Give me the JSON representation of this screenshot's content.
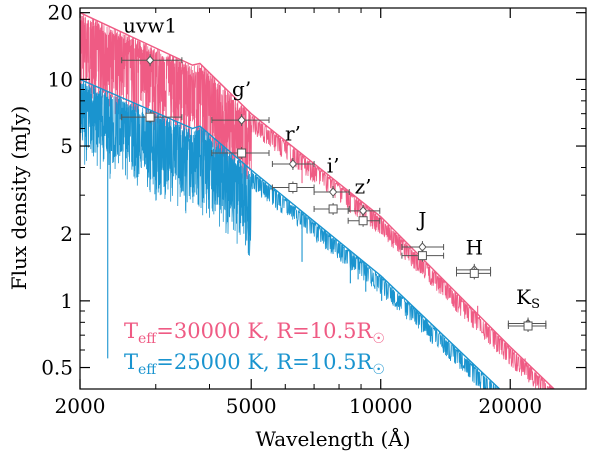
{
  "chart_data": {
    "type": "line",
    "xlabel": "Wavelength (Å)",
    "ylabel": "Flux density (mJy)",
    "x_scale": "log",
    "y_scale": "log",
    "xlim": [
      2000,
      30000
    ],
    "ylim": [
      0.4,
      21
    ],
    "xticks": [
      {
        "value": 2000,
        "label": "2000"
      },
      {
        "value": 5000,
        "label": "5000"
      },
      {
        "value": 10000,
        "label": "10000"
      },
      {
        "value": 20000,
        "label": "20000"
      }
    ],
    "yticks": [
      {
        "value": 0.5,
        "label": "0.5"
      },
      {
        "value": 1,
        "label": "1"
      },
      {
        "value": 2,
        "label": "2"
      },
      {
        "value": 5,
        "label": "5"
      },
      {
        "value": 10,
        "label": "10"
      },
      {
        "value": 20,
        "label": "20"
      }
    ],
    "colors": {
      "hot": "#ef5b84",
      "cool": "#1a94cf",
      "points": "#555555"
    },
    "models": [
      {
        "color": "#ef5b84",
        "legend_text": "T",
        "legend_sub": "eff",
        "legend_rest": "=30000 K, R=10.5R",
        "legend_sym": "☉",
        "envelope": [
          [
            2000,
            20
          ],
          [
            3650,
            11.6
          ],
          [
            3800,
            11.8
          ],
          [
            5000,
            7.0
          ],
          [
            10000,
            2.4
          ],
          [
            20000,
            0.62
          ],
          [
            26000,
            0.38
          ]
        ],
        "lines": [
          [
            2150,
            17.6
          ],
          [
            2250,
            16.0
          ],
          [
            2480,
            14.2
          ],
          [
            2660,
            12.6
          ],
          [
            2850,
            11.9
          ],
          [
            3050,
            11.6
          ],
          [
            3300,
            11.2
          ],
          [
            3835,
            10.0
          ],
          [
            3889,
            9.6
          ],
          [
            3970,
            9.0
          ],
          [
            4101,
            7.8
          ],
          [
            4340,
            7.2
          ],
          [
            4861,
            5.8
          ],
          [
            6563,
            3.4
          ],
          [
            8500,
            2.5
          ],
          [
            8860,
            2.6
          ],
          [
            9230,
            2.3
          ],
          [
            10050,
            2.0
          ],
          [
            12820,
            1.4
          ],
          [
            16800,
            0.95
          ],
          [
            21660,
            0.55
          ]
        ]
      },
      {
        "color": "#1a94cf",
        "legend_text": "T",
        "legend_sub": "eff",
        "legend_rest": "=25000 K, R=10.5R",
        "legend_sym": "☉",
        "envelope": [
          [
            2000,
            10
          ],
          [
            3650,
            6.0
          ],
          [
            3800,
            6.15
          ],
          [
            5000,
            3.9
          ],
          [
            10000,
            1.3
          ],
          [
            20000,
            0.36
          ],
          [
            25000,
            0.3
          ]
        ],
        "lines": [
          [
            2150,
            8.6
          ],
          [
            2250,
            7.7
          ],
          [
            2320,
            0.55
          ],
          [
            2480,
            6.6
          ],
          [
            2660,
            5.9
          ],
          [
            2850,
            5.7
          ],
          [
            3050,
            5.2
          ],
          [
            3300,
            5.0
          ],
          [
            3835,
            4.8
          ],
          [
            3889,
            4.5
          ],
          [
            3970,
            4.3
          ],
          [
            4101,
            3.7
          ],
          [
            4340,
            3.5
          ],
          [
            4861,
            2.9
          ],
          [
            6563,
            1.5
          ],
          [
            8500,
            1.2
          ],
          [
            8860,
            1.25
          ],
          [
            9230,
            1.1
          ],
          [
            10050,
            1.0
          ],
          [
            12820,
            0.7
          ],
          [
            16800,
            0.5
          ],
          [
            21660,
            0.32
          ]
        ]
      }
    ],
    "photometry": [
      {
        "band": "uvw1",
        "x": 2910,
        "xlo": 2500,
        "xhi": 3450,
        "diamond": 12.2,
        "square": 6.75,
        "label_x": 2910,
        "label_y": 16.3
      },
      {
        "band": "g’",
        "x": 4750,
        "xlo": 4050,
        "xhi": 5500,
        "diamond": 6.55,
        "square": 4.65,
        "label_x": 4750,
        "label_y": 8.4
      },
      {
        "band": "r’",
        "x": 6250,
        "xlo": 5600,
        "xhi": 7000,
        "diamond": 4.15,
        "square": 3.25,
        "label_x": 6250,
        "label_y": 5.3
      },
      {
        "band": "i’",
        "x": 7750,
        "xlo": 7000,
        "xhi": 8450,
        "diamond": 3.1,
        "square": 2.6,
        "label_x": 7750,
        "label_y": 3.8
      },
      {
        "band": "z’",
        "x": 9100,
        "xlo": 8400,
        "xhi": 9950,
        "diamond": 2.55,
        "square": 2.3,
        "label_x": 9100,
        "label_y": 3.05
      },
      {
        "band": "J",
        "x": 12500,
        "xlo": 11200,
        "xhi": 14000,
        "diamond": 1.75,
        "square": 1.6,
        "label_x": 12500,
        "label_y": 2.17
      },
      {
        "band": "H",
        "x": 16500,
        "xlo": 15000,
        "xhi": 18000,
        "diamond": 1.38,
        "square": 1.33,
        "label_x": 16500,
        "label_y": 1.62
      },
      {
        "band": "K",
        "band_sub": "S",
        "x": 22000,
        "xlo": 19800,
        "xhi": 24200,
        "diamond": 0.79,
        "square": 0.77,
        "label_x": 22000,
        "label_y": 0.97
      }
    ]
  }
}
